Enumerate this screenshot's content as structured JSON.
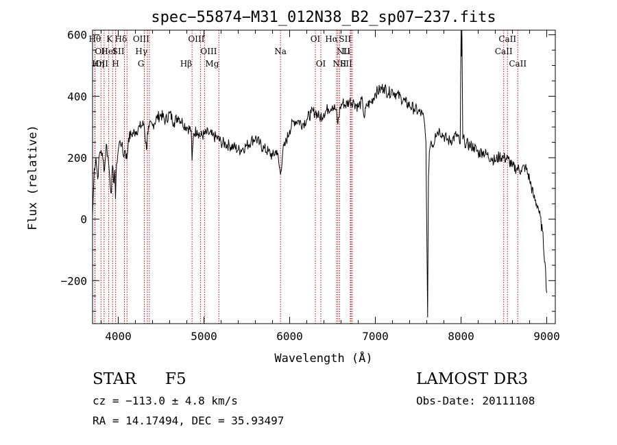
{
  "chart_data": {
    "type": "line",
    "title": "spec−55874−M31_012N38_B2_sp07−237.fits",
    "xlabel": "Wavelength (Å)",
    "ylabel": "Flux (relative)",
    "xlim": [
      3700,
      9100
    ],
    "ylim": [
      -340,
      615
    ],
    "xticks": [
      4000,
      5000,
      6000,
      7000,
      8000,
      9000
    ],
    "yticks": [
      -200,
      0,
      200,
      400,
      600
    ],
    "ytick_labels": [
      "−200",
      "0",
      "200",
      "400",
      "600"
    ],
    "series": [
      {
        "name": "spectrum",
        "x": [
          3700,
          3720,
          3740,
          3760,
          3780,
          3800,
          3820,
          3840,
          3860,
          3880,
          3900,
          3920,
          3933,
          3945,
          3960,
          3968,
          3980,
          4000,
          4020,
          4040,
          4060,
          4080,
          4101,
          4120,
          4150,
          4200,
          4250,
          4300,
          4330,
          4340,
          4360,
          4400,
          4450,
          4500,
          4550,
          4600,
          4650,
          4700,
          4750,
          4800,
          4850,
          4861,
          4880,
          4920,
          4960,
          5000,
          5050,
          5100,
          5150,
          5200,
          5250,
          5300,
          5350,
          5400,
          5450,
          5500,
          5550,
          5600,
          5650,
          5700,
          5750,
          5800,
          5850,
          5893,
          5920,
          5950,
          6000,
          6050,
          6100,
          6150,
          6200,
          6250,
          6300,
          6350,
          6400,
          6450,
          6500,
          6540,
          6563,
          6590,
          6620,
          6650,
          6700,
          6750,
          6800,
          6850,
          6870,
          6900,
          6950,
          7000,
          7050,
          7100,
          7150,
          7200,
          7250,
          7300,
          7350,
          7400,
          7450,
          7500,
          7550,
          7570,
          7590,
          7600,
          7610,
          7620,
          7630,
          7650,
          7680,
          7700,
          7750,
          7800,
          7850,
          7900,
          7950,
          7990,
          8000,
          8005,
          8010,
          8020,
          8040,
          8060,
          8100,
          8150,
          8200,
          8250,
          8300,
          8350,
          8400,
          8450,
          8500,
          8550,
          8600,
          8650,
          8700,
          8750,
          8800,
          8850,
          8900,
          8950,
          8980,
          9000
        ],
        "y": [
          10,
          165,
          200,
          130,
          210,
          225,
          195,
          160,
          245,
          205,
          140,
          85,
          175,
          120,
          160,
          65,
          180,
          225,
          255,
          245,
          205,
          225,
          195,
          265,
          275,
          285,
          300,
          310,
          225,
          280,
          300,
          305,
          330,
          340,
          320,
          345,
          315,
          335,
          315,
          300,
          290,
          190,
          280,
          290,
          270,
          275,
          280,
          270,
          265,
          250,
          245,
          240,
          235,
          225,
          230,
          240,
          255,
          265,
          245,
          230,
          220,
          205,
          225,
          145,
          220,
          245,
          290,
          320,
          320,
          310,
          325,
          345,
          350,
          330,
          345,
          360,
          370,
          355,
          310,
          365,
          380,
          370,
          385,
          380,
          365,
          385,
          330,
          370,
          380,
          410,
          420,
          430,
          410,
          420,
          405,
          395,
          380,
          370,
          360,
          350,
          340,
          320,
          250,
          -30,
          -320,
          140,
          220,
          255,
          240,
          280,
          290,
          270,
          255,
          260,
          275,
          245,
          600,
          530,
          620,
          260,
          255,
          245,
          240,
          235,
          215,
          220,
          210,
          200,
          190,
          205,
          200,
          195,
          170,
          165,
          160,
          170,
          130,
          70,
          40,
          -40,
          -140,
          -240
        ]
      }
    ],
    "lines": [
      {
        "label": "Hθ",
        "x": 3798,
        "row": 0,
        "align": "right"
      },
      {
        "label": "OII",
        "x": 3727,
        "row": 1,
        "align": "left"
      },
      {
        "label": "OII",
        "x": 3729,
        "row": 2,
        "align": "left"
      },
      {
        "label": "Hη",
        "x": 3835,
        "row": 2,
        "align": "right"
      },
      {
        "label": "K",
        "x": 3934,
        "row": 0,
        "align": "right"
      },
      {
        "label": "HeI",
        "x": 3889,
        "row": 1,
        "align": "center"
      },
      {
        "label": "SII",
        "x": 4072,
        "row": 1,
        "align": "right"
      },
      {
        "label": "H",
        "x": 3969,
        "row": 2,
        "align": "center"
      },
      {
        "label": "Hδ",
        "x": 4102,
        "row": 0,
        "align": "right"
      },
      {
        "label": "OIII",
        "x": 4363,
        "row": 0,
        "align": "right"
      },
      {
        "label": "Hγ",
        "x": 4340,
        "row": 1,
        "align": "right"
      },
      {
        "label": "G",
        "x": 4304,
        "row": 2,
        "align": "right"
      },
      {
        "label": "Hβ",
        "x": 4861,
        "row": 2,
        "align": "right"
      },
      {
        "label": "OIII",
        "x": 5007,
        "row": 0,
        "align": "right"
      },
      {
        "label": "OIII",
        "x": 4959,
        "row": 1,
        "align": "left"
      },
      {
        "label": "Mg",
        "x": 5175,
        "row": 2,
        "align": "right"
      },
      {
        "label": "Na",
        "x": 5893,
        "row": 1,
        "align": "center"
      },
      {
        "label": "OI",
        "x": 6300,
        "row": 0,
        "align": "center"
      },
      {
        "label": "OI",
        "x": 6364,
        "row": 2,
        "align": "center"
      },
      {
        "label": "Hα",
        "x": 6563,
        "row": 0,
        "align": "right"
      },
      {
        "label": "SII",
        "x": 6717,
        "row": 0,
        "align": "right"
      },
      {
        "label": "NII",
        "x": 6548,
        "row": 1,
        "align": "left"
      },
      {
        "label": "Li",
        "x": 6708,
        "row": 1,
        "align": "right"
      },
      {
        "label": "NII",
        "x": 6583,
        "row": 2,
        "align": "center"
      },
      {
        "label": "SII",
        "x": 6731,
        "row": 2,
        "align": "right"
      },
      {
        "label": "CaII",
        "x": 8542,
        "row": 0,
        "align": "center"
      },
      {
        "label": "CaII",
        "x": 8498,
        "row": 1,
        "align": "center"
      },
      {
        "label": "CaII",
        "x": 8662,
        "row": 2,
        "align": "center"
      }
    ]
  },
  "info": {
    "object_class": "STAR",
    "subclass": "F5",
    "survey": "LAMOST DR3",
    "cz": "cz = −113.0 ± 4.8 km/s",
    "obs_date": "Obs-Date: 20111108",
    "coords": "RA =  14.17494, DEC =  35.93497"
  }
}
